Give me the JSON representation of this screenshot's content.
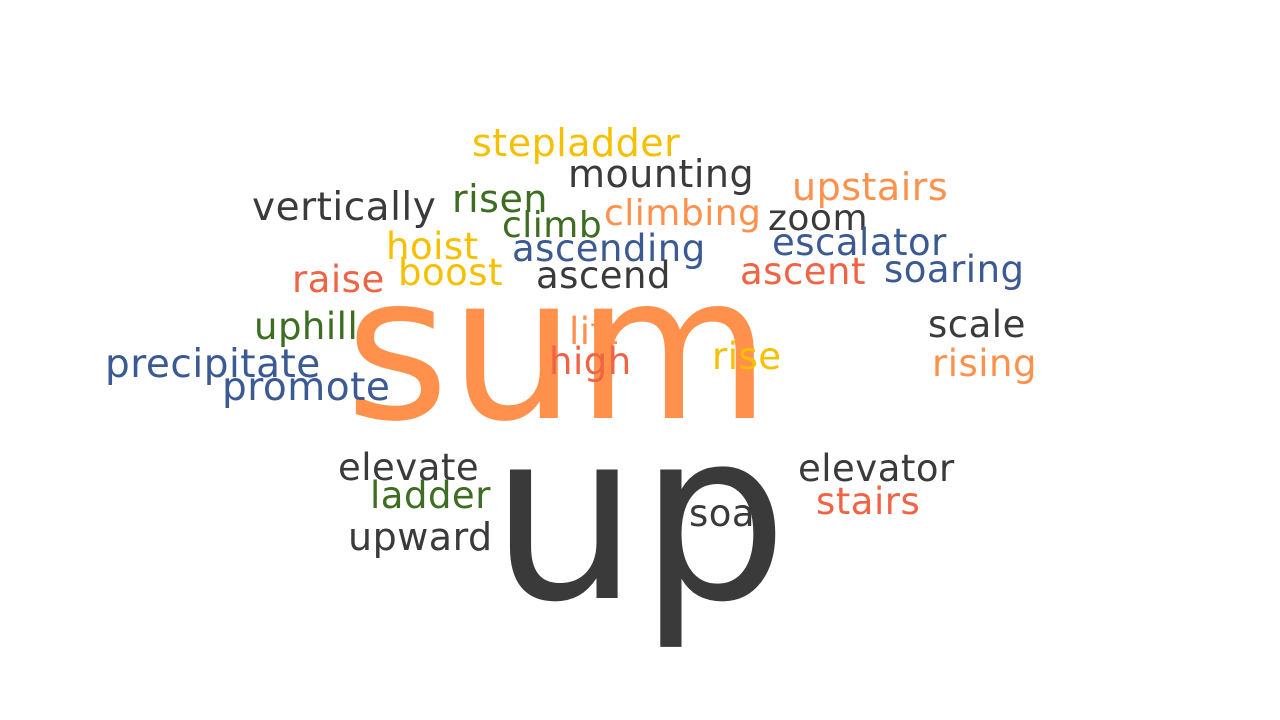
{
  "colors": {
    "orange": "#ff914d",
    "dark": "#3a3a3a",
    "yellow": "#f6c000",
    "green": "#3c6d20",
    "blue": "#3b5a93",
    "red": "#f06445"
  },
  "words": [
    {
      "id": "sum",
      "text": "sum",
      "color": "orange"
    },
    {
      "id": "up",
      "text": "up",
      "color": "dark"
    },
    {
      "id": "stepladder",
      "text": "stepladder",
      "color": "yellow"
    },
    {
      "id": "mounting",
      "text": "mounting",
      "color": "dark"
    },
    {
      "id": "upstairs",
      "text": "upstairs",
      "color": "orange"
    },
    {
      "id": "vertically",
      "text": "vertically",
      "color": "dark"
    },
    {
      "id": "risen",
      "text": "risen",
      "color": "green"
    },
    {
      "id": "climb",
      "text": "climb",
      "color": "green"
    },
    {
      "id": "climbing",
      "text": "climbing",
      "color": "orange"
    },
    {
      "id": "zoom",
      "text": "zoom",
      "color": "dark"
    },
    {
      "id": "hoist",
      "text": "hoist",
      "color": "yellow"
    },
    {
      "id": "ascending",
      "text": "ascending",
      "color": "blue"
    },
    {
      "id": "escalator",
      "text": "escalator",
      "color": "blue"
    },
    {
      "id": "raise",
      "text": "raise",
      "color": "red"
    },
    {
      "id": "boost",
      "text": "boost",
      "color": "yellow"
    },
    {
      "id": "ascend",
      "text": "ascend",
      "color": "dark"
    },
    {
      "id": "ascent",
      "text": "ascent",
      "color": "red"
    },
    {
      "id": "soaring",
      "text": "soaring",
      "color": "blue"
    },
    {
      "id": "uphill",
      "text": "uphill",
      "color": "green"
    },
    {
      "id": "lift",
      "text": "lift",
      "color": "orange"
    },
    {
      "id": "scale",
      "text": "scale",
      "color": "dark"
    },
    {
      "id": "precipitate",
      "text": "precipitate",
      "color": "blue"
    },
    {
      "id": "high",
      "text": "high",
      "color": "red"
    },
    {
      "id": "rise",
      "text": "rise",
      "color": "yellow"
    },
    {
      "id": "rising",
      "text": "rising",
      "color": "orange"
    },
    {
      "id": "promote",
      "text": "promote",
      "color": "blue"
    },
    {
      "id": "elevate",
      "text": "elevate",
      "color": "dark"
    },
    {
      "id": "elevator",
      "text": "elevator",
      "color": "dark"
    },
    {
      "id": "ladder",
      "text": "ladder",
      "color": "green"
    },
    {
      "id": "stairs",
      "text": "stairs",
      "color": "red"
    },
    {
      "id": "soar",
      "text": "soar",
      "color": "dark"
    },
    {
      "id": "upward",
      "text": "upward",
      "color": "dark"
    }
  ]
}
